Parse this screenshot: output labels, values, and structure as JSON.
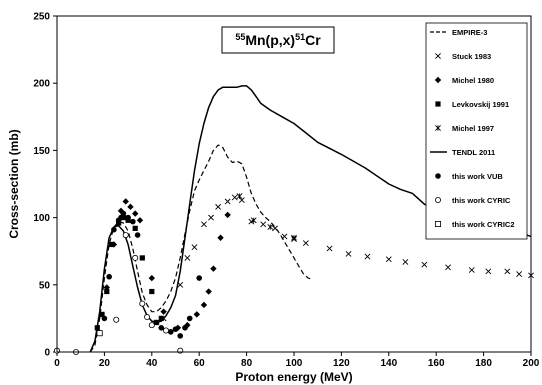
{
  "chart_data": {
    "type": "scatter",
    "title_parts": [
      {
        "text": "55",
        "sup": true
      },
      {
        "text": "Mn(p,x)",
        "sup": false
      },
      {
        "text": "51",
        "sup": true
      },
      {
        "text": "Cr",
        "sup": false
      }
    ],
    "xlabel": "Proton energy (MeV)",
    "ylabel": "Cross-section (mb)",
    "xlim": [
      0,
      200
    ],
    "ylim": [
      0,
      250
    ],
    "xticks": [
      "0",
      "20",
      "40",
      "60",
      "80",
      "100",
      "120",
      "140",
      "160",
      "180",
      "200"
    ],
    "yticks": [
      "0",
      "50",
      "100",
      "150",
      "200",
      "250"
    ],
    "legend_position": "top-right",
    "grid": false,
    "series": [
      {
        "name": "EMPIRE-3",
        "kind": "line",
        "dash": "dashed",
        "marker": "line",
        "x": [
          14,
          16,
          18,
          20,
          22,
          24,
          26,
          28,
          30,
          32,
          34,
          36,
          38,
          40,
          42,
          44,
          46,
          48,
          50,
          52,
          54,
          56,
          58,
          60,
          62,
          64,
          66,
          68,
          70,
          72,
          74,
          76,
          78,
          80,
          82,
          84,
          86,
          88,
          90,
          92,
          94,
          96,
          98,
          100,
          102,
          104,
          106,
          108
        ],
        "y": [
          0,
          5,
          25,
          55,
          80,
          93,
          97,
          96,
          90,
          77,
          60,
          44,
          35,
          30,
          30,
          33,
          38,
          45,
          55,
          70,
          88,
          105,
          120,
          128,
          135,
          142,
          150,
          154,
          152,
          145,
          141,
          142,
          140,
          130,
          118,
          110,
          104,
          100,
          97,
          93,
          88,
          82,
          76,
          70,
          64,
          58,
          55,
          54
        ]
      },
      {
        "name": "Stuck 1983",
        "kind": "scatter",
        "marker": "x",
        "x": [
          42,
          45,
          52,
          55,
          58,
          62,
          65,
          68,
          72,
          75,
          78,
          82,
          87,
          92,
          96,
          100,
          105,
          115,
          123,
          131,
          140,
          147,
          155,
          165,
          175,
          182,
          190,
          195,
          200
        ],
        "y": [
          22,
          25,
          50,
          70,
          78,
          95,
          100,
          108,
          112,
          115,
          113,
          97,
          95,
          92,
          86,
          84,
          81,
          77,
          73,
          71,
          69,
          67,
          65,
          63,
          61,
          60,
          60,
          58,
          57
        ]
      },
      {
        "name": "Michel 1980",
        "kind": "scatter",
        "marker": "diamond",
        "x": [
          21,
          24,
          27,
          29,
          31,
          33,
          35,
          40,
          45,
          51,
          55,
          59,
          62,
          64,
          66,
          69,
          72
        ],
        "y": [
          48,
          80,
          105,
          112,
          108,
          103,
          98,
          55,
          30,
          18,
          20,
          28,
          35,
          45,
          62,
          85,
          102
        ]
      },
      {
        "name": "Levkovskij 1991",
        "kind": "scatter",
        "marker": "square",
        "x": [
          17,
          19,
          21,
          23,
          26,
          28,
          30,
          33,
          36,
          40,
          44
        ],
        "y": [
          18,
          28,
          45,
          80,
          96,
          100,
          98,
          92,
          70,
          45,
          25
        ]
      },
      {
        "name": "Michel 1997",
        "kind": "scatter",
        "marker": "star",
        "x": [
          77,
          83,
          90,
          100
        ],
        "y": [
          116,
          98,
          93,
          85
        ]
      },
      {
        "name": "TENDL 2011",
        "kind": "line",
        "dash": "solid",
        "marker": "line",
        "x": [
          14,
          16,
          18,
          20,
          22,
          24,
          26,
          28,
          30,
          32,
          34,
          36,
          38,
          40,
          42,
          44,
          46,
          48,
          50,
          52,
          54,
          56,
          58,
          60,
          62,
          64,
          66,
          68,
          70,
          72,
          74,
          76,
          78,
          80,
          82,
          84,
          86,
          90,
          95,
          100,
          105,
          110,
          120,
          130,
          140,
          145,
          150,
          155,
          160,
          170,
          180,
          190,
          200
        ],
        "y": [
          0,
          8,
          30,
          62,
          85,
          93,
          94,
          90,
          80,
          64,
          48,
          35,
          27,
          23,
          22,
          23,
          27,
          33,
          42,
          60,
          85,
          110,
          135,
          155,
          170,
          182,
          190,
          195,
          197,
          197,
          197,
          197,
          198,
          198,
          195,
          190,
          185,
          180,
          175,
          170,
          163,
          156,
          147,
          137,
          125,
          121,
          118,
          110,
          106,
          100,
          96,
          92,
          86
        ]
      },
      {
        "name": "this work VUB",
        "kind": "scatter",
        "marker": "circle",
        "x": [
          20,
          22,
          24,
          26,
          27,
          28,
          30,
          32,
          34,
          42,
          44,
          48,
          50,
          52,
          54,
          56,
          60
        ],
        "y": [
          25,
          56,
          91,
          98,
          100,
          103,
          100,
          97,
          87,
          22,
          18,
          15,
          17,
          12,
          18,
          25,
          55
        ]
      },
      {
        "name": "this work CYRIC",
        "kind": "scatter",
        "marker": "open-circle",
        "x": [
          0,
          8,
          25,
          29,
          33,
          36,
          38,
          40,
          46,
          52
        ],
        "y": [
          1,
          0,
          24,
          87,
          70,
          36,
          26,
          20,
          16,
          1
        ]
      },
      {
        "name": "this work CYRIC2",
        "kind": "scatter",
        "marker": "open-square",
        "x": [
          18
        ],
        "y": [
          14
        ]
      }
    ]
  }
}
